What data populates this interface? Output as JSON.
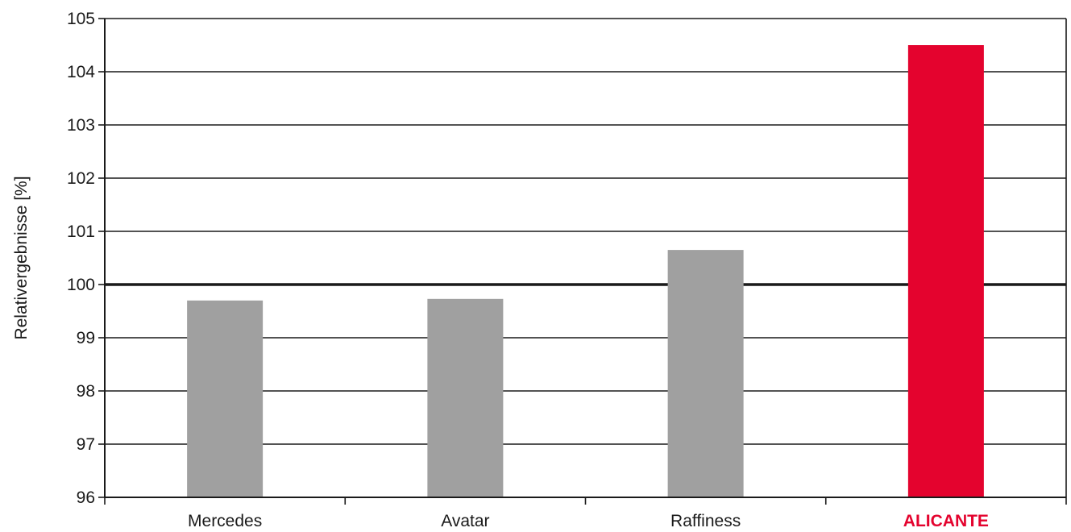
{
  "chart_data": {
    "type": "bar",
    "categories": [
      "Mercedes",
      "Avatar",
      "Raffiness",
      "ALICANTE"
    ],
    "values": [
      99.7,
      99.73,
      100.65,
      104.5
    ],
    "ylabel": "Relativergebnisse [%]",
    "xlabel": "",
    "ylim": [
      96,
      105
    ],
    "yticks": [
      96,
      97,
      98,
      99,
      100,
      101,
      102,
      103,
      104,
      105
    ],
    "reference_line": 100,
    "grid": true,
    "legend": "none",
    "colors": {
      "default_bar": "#a0a0a0",
      "highlight_bar": "#e4032e",
      "highlight_category": "ALICANTE",
      "label_default": "#1a1a1a",
      "label_highlight": "#e4032e",
      "gridline": "#1a1a1a",
      "axis": "#1a1a1a"
    }
  }
}
